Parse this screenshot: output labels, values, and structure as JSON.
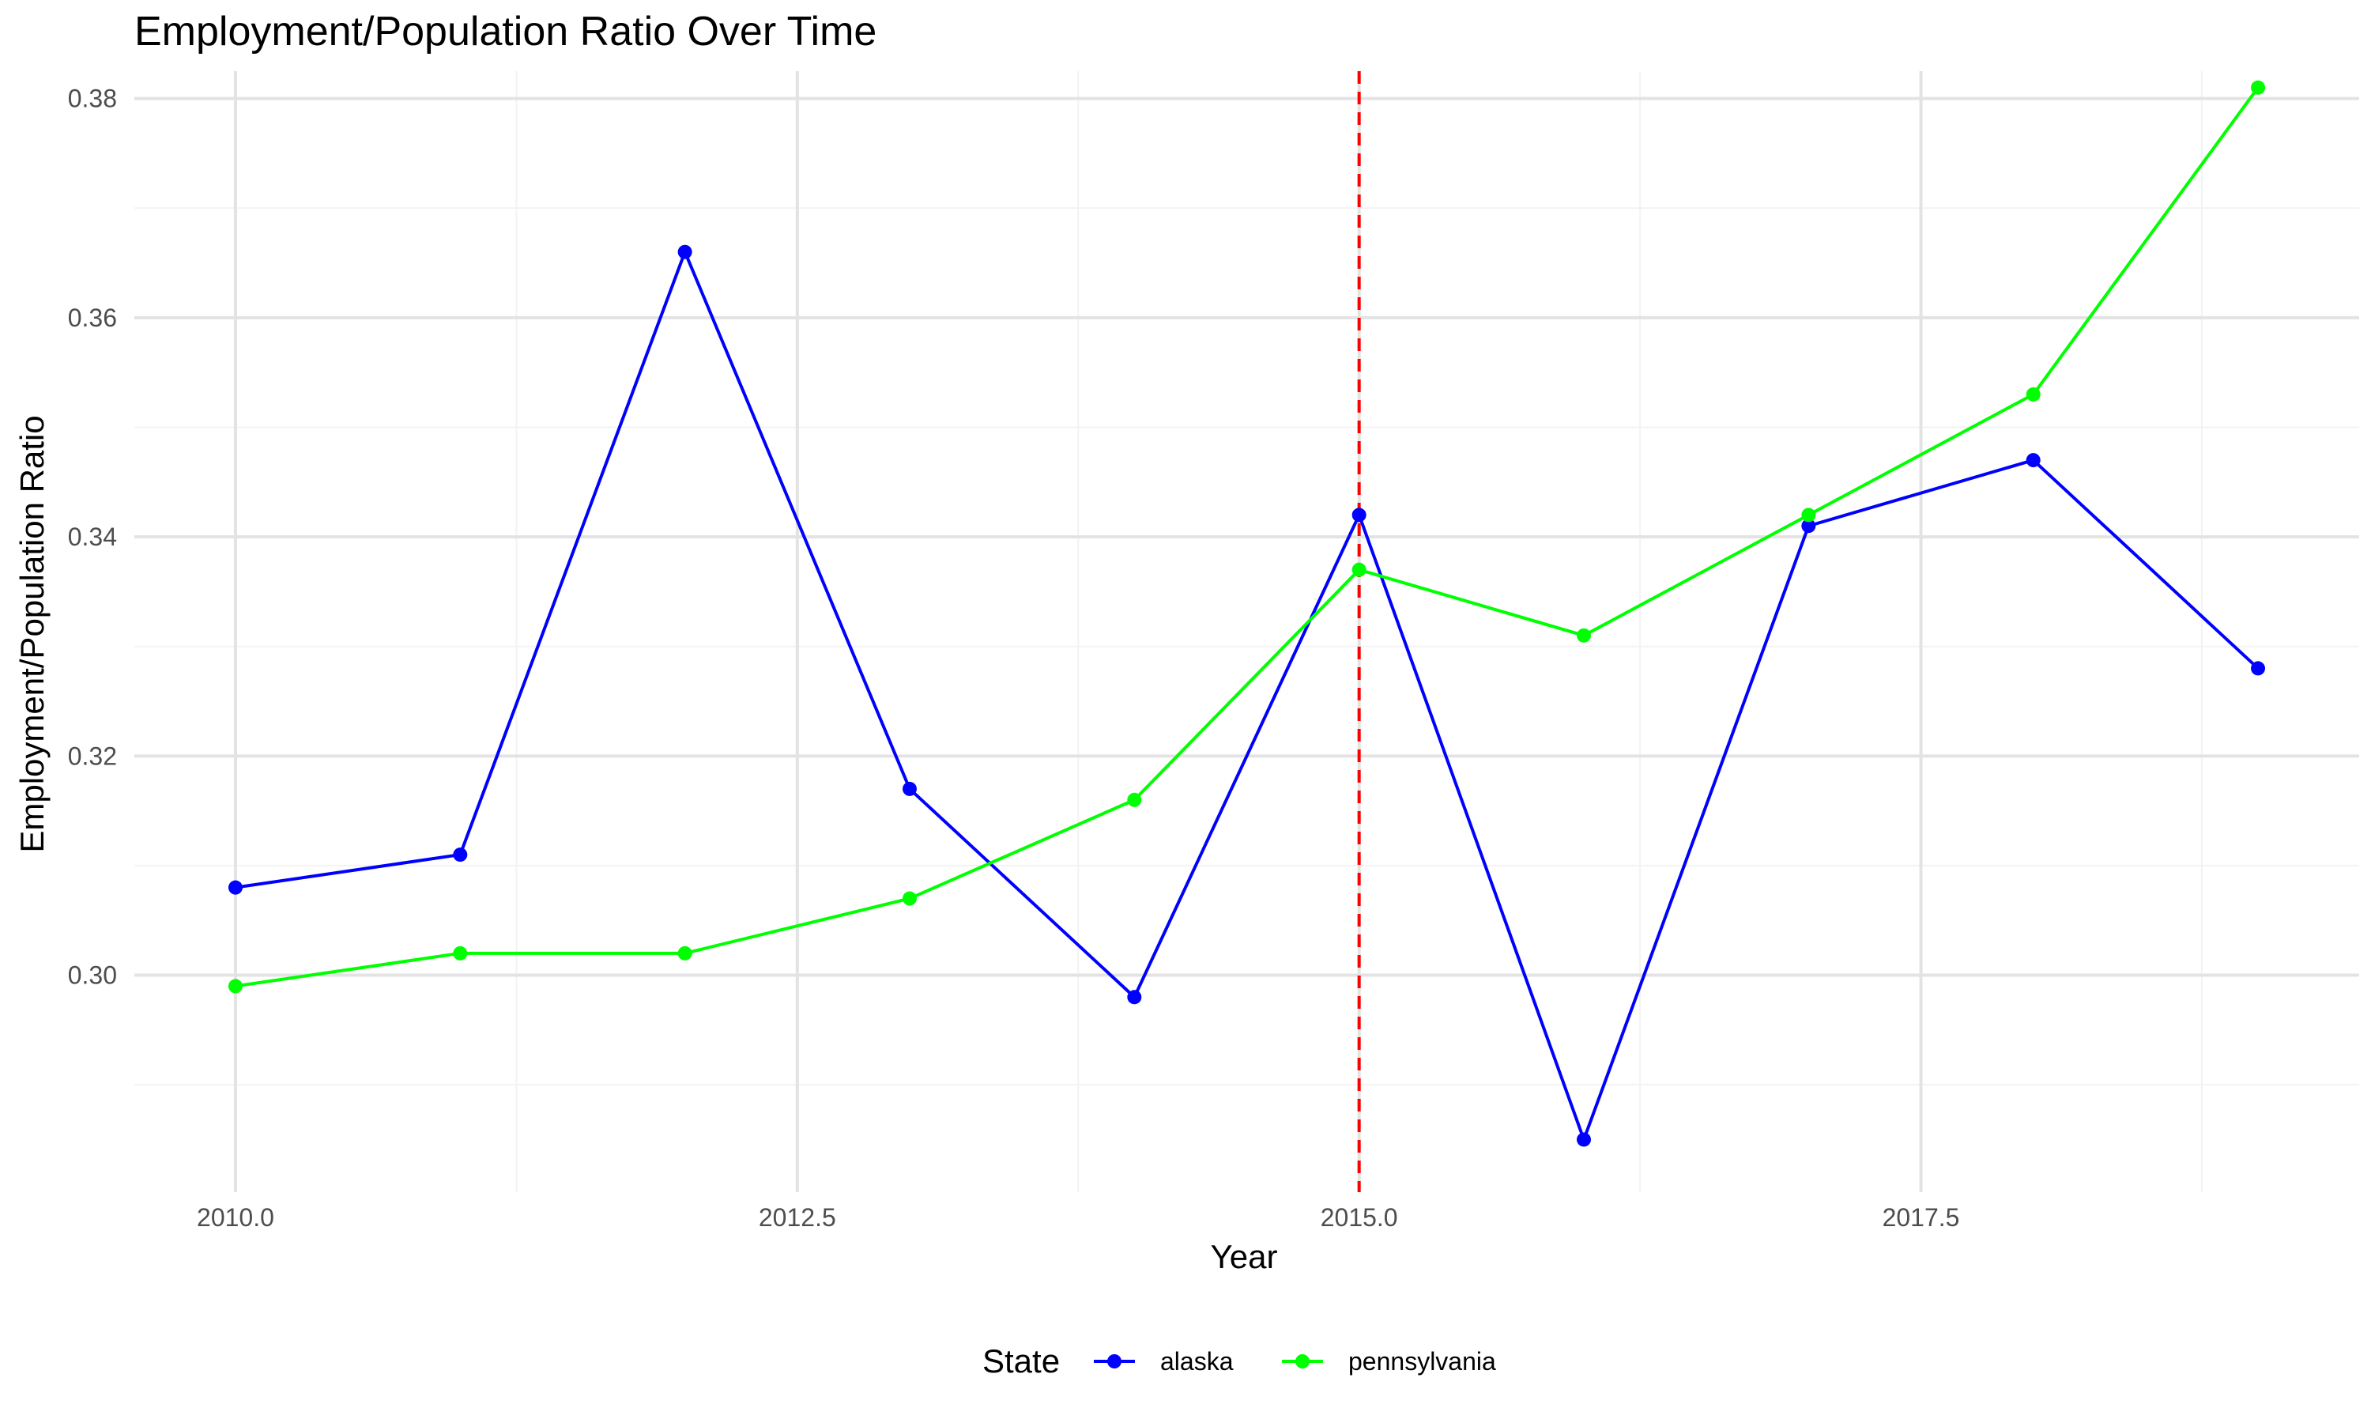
{
  "chart_data": {
    "type": "line",
    "title": "Employment/Population Ratio Over Time",
    "xlabel": "Year",
    "ylabel": "Employment/Population Ratio",
    "x": [
      2010,
      2011,
      2012,
      2013,
      2014,
      2015,
      2016,
      2017,
      2018,
      2019
    ],
    "xlim": [
      2009.55,
      2019.45
    ],
    "ylim": [
      0.2802,
      0.3825
    ],
    "x_ticks": [
      2010.0,
      2012.5,
      2015.0,
      2017.5
    ],
    "x_tick_labels": [
      "2010.0",
      "2012.5",
      "2015.0",
      "2017.5"
    ],
    "y_ticks": [
      0.3,
      0.32,
      0.34,
      0.36,
      0.38
    ],
    "y_tick_labels": [
      "0.30",
      "0.32",
      "0.34",
      "0.36",
      "0.38"
    ],
    "grid": true,
    "legend_title": "State",
    "legend_position": "bottom",
    "series": [
      {
        "name": "alaska",
        "color": "#0000FF",
        "values": [
          0.308,
          0.311,
          0.366,
          0.317,
          0.298,
          0.342,
          0.285,
          0.341,
          0.347,
          0.328
        ]
      },
      {
        "name": "pennsylvania",
        "color": "#00FF00",
        "values": [
          0.299,
          0.302,
          0.302,
          0.307,
          0.316,
          0.337,
          0.331,
          0.342,
          0.353,
          0.381
        ]
      }
    ],
    "annotations": [
      {
        "type": "vline",
        "x": 2015,
        "color": "#FF0000",
        "style": "dashed"
      }
    ]
  }
}
